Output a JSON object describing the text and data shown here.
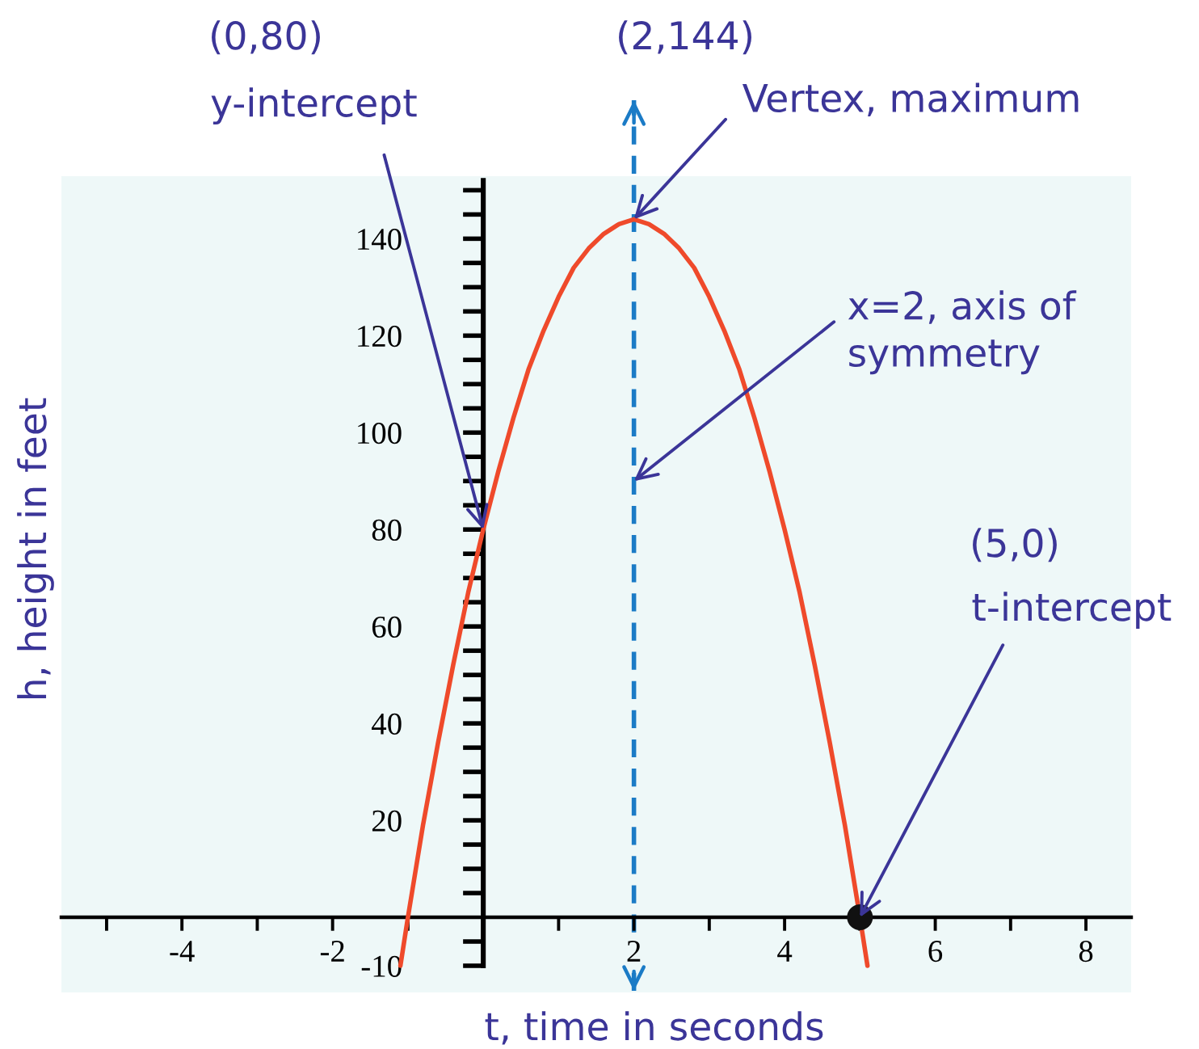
{
  "chart_data": {
    "type": "line",
    "xlabel": "t, time in seconds",
    "ylabel": "h, height in feet",
    "xlim": [
      -5.6,
      8.6
    ],
    "ylim": [
      -10,
      152
    ],
    "xticks": [
      {
        "value": -5,
        "label": null
      },
      -4,
      {
        "value": -3,
        "label": null
      },
      -2,
      {
        "value": -1,
        "label": null
      },
      {
        "value": 1,
        "label": null
      },
      2,
      {
        "value": 3,
        "label": null
      },
      4,
      {
        "value": 5,
        "label": null
      },
      6,
      {
        "value": 7,
        "label": null
      },
      8
    ],
    "yticks": [
      -10,
      {
        "value": -5,
        "label": null
      },
      {
        "value": 5,
        "label": null
      },
      {
        "value": 10,
        "label": null
      },
      {
        "value": 15,
        "label": null
      },
      20,
      {
        "value": 25,
        "label": null
      },
      {
        "value": 30,
        "label": null
      },
      {
        "value": 35,
        "label": null
      },
      40,
      {
        "value": 45,
        "label": null
      },
      {
        "value": 50,
        "label": null
      },
      {
        "value": 55,
        "label": null
      },
      60,
      {
        "value": 65,
        "label": null
      },
      {
        "value": 70,
        "label": null
      },
      {
        "value": 75,
        "label": null
      },
      80,
      {
        "value": 85,
        "label": null
      },
      {
        "value": 90,
        "label": null
      },
      {
        "value": 95,
        "label": null
      },
      100,
      {
        "value": 105,
        "label": null
      },
      {
        "value": 110,
        "label": null
      },
      {
        "value": 115,
        "label": null
      },
      120,
      {
        "value": 125,
        "label": null
      },
      {
        "value": 130,
        "label": null
      },
      {
        "value": 135,
        "label": null
      },
      140,
      {
        "value": 145,
        "label": null
      },
      {
        "value": 150,
        "label": null
      }
    ],
    "series": [
      {
        "color": "#ef4a2b",
        "x": [
          -1.1,
          -1,
          -0.8,
          -0.6,
          -0.4,
          -0.2,
          0,
          0.2,
          0.4,
          0.6,
          0.8,
          1,
          1.2,
          1.4,
          1.6,
          1.8,
          2,
          2.2,
          2.4,
          2.6,
          2.8,
          3,
          3.2,
          3.4,
          3.6,
          3.8,
          4,
          4.2,
          4.4,
          4.6,
          4.8,
          5,
          5.1
        ],
        "values": [
          -10,
          0,
          19,
          36,
          52,
          67,
          80,
          92,
          103,
          113,
          121,
          128,
          134,
          138,
          141,
          143,
          144,
          143,
          141,
          138,
          134,
          128,
          121,
          113,
          103,
          92,
          80,
          67,
          52,
          36,
          19,
          0,
          -10
        ]
      },
      {
        "type": "scatter",
        "color": "#111111",
        "marker": "circle",
        "x": [
          5
        ],
        "values": [
          0
        ]
      }
    ],
    "ref_lines": [
      {
        "axis": "x",
        "value": 2,
        "color": "#1b7bc6",
        "line_style": "dashed"
      }
    ],
    "annotations": [
      "(0,80)",
      {
        "text": "y-intercept",
        "x": 0,
        "y": 80
      },
      "(2,144)",
      {
        "text": "Vertex, maximum",
        "x": 2,
        "y": 144
      },
      {
        "text": "x=2, axis of\nsymmetry",
        "x": 2,
        "y": 90
      },
      "(5,0)",
      {
        "text": "t-intercept",
        "x": 5,
        "y": 0
      }
    ]
  }
}
